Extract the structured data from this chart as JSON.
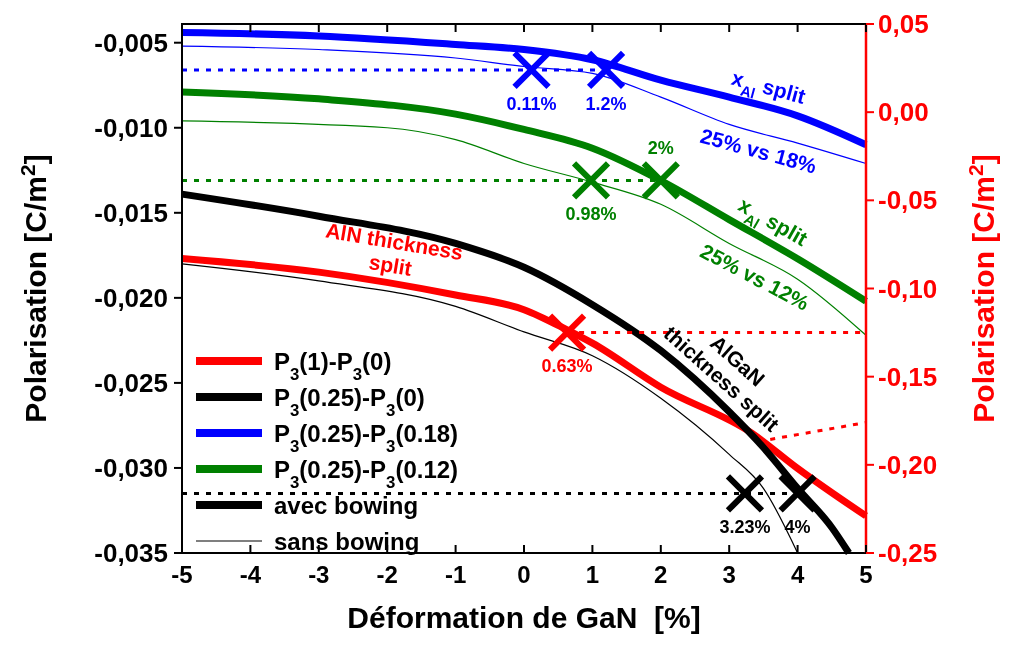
{
  "chart_data": {
    "type": "line",
    "xlabel": "Déformation de GaN  [%]",
    "ylabel": "Polarisation [C/m$^{2}$]",
    "y2label": "Polarisation [C/m$^{2}$]",
    "xlim": [
      -5,
      5
    ],
    "xticks": [
      -5,
      -4,
      -3,
      -2,
      -1,
      0,
      1,
      2,
      3,
      4,
      5
    ],
    "ylim": [
      -0.035,
      -0.0039
    ],
    "yticks": [
      {
        "value": -0.005,
        "label": "-0,005"
      },
      {
        "value": -0.01,
        "label": "-0,010"
      },
      {
        "value": -0.015,
        "label": "-0,015"
      },
      {
        "value": -0.02,
        "label": "-0,020"
      },
      {
        "value": -0.025,
        "label": "-0,025"
      },
      {
        "value": -0.03,
        "label": "-0,030"
      },
      {
        "value": -0.035,
        "label": "-0,035"
      }
    ],
    "y2lim": [
      -0.25,
      0.05
    ],
    "y2ticks": [
      {
        "value": 0.05,
        "label": "0,05"
      },
      {
        "value": 0,
        "label": "0,00"
      },
      {
        "value": -0.05,
        "label": "-0,05"
      },
      {
        "value": -0.1,
        "label": "-0,10"
      },
      {
        "value": -0.15,
        "label": "-0,15"
      },
      {
        "value": -0.2,
        "label": "-0,20"
      },
      {
        "value": -0.25,
        "label": "-0,25"
      }
    ],
    "legend": "bottom left",
    "grid": false,
    "series": [
      {
        "name": "P$_{3}$(1)-P$_{3}$(0)",
        "color": "#ff0000",
        "axis": "y2",
        "x": [
          -5,
          -3,
          -1,
          0,
          0.63,
          1,
          2,
          3.33,
          4,
          5
        ],
        "values": [
          -0.083,
          -0.0907,
          -0.1037,
          -0.112,
          -0.1235,
          -0.131,
          -0.156,
          -0.182,
          -0.202,
          -0.229
        ]
      },
      {
        "name": "P$_{3}$(0.25)-P$_{3}$(0)",
        "color": "#000000",
        "x": [
          -5,
          -3,
          -1,
          0,
          1,
          2,
          3,
          3.5,
          4,
          4.5,
          4.75
        ],
        "values": [
          -0.0139,
          -0.0152,
          -0.0168,
          -0.0182,
          -0.0204,
          -0.0231,
          -0.0267,
          -0.0288,
          -0.0312,
          -0.0335,
          -0.035
        ]
      },
      {
        "name": "P$_{3}$(0.25)-P$_{3}$(0.18)",
        "color": "#0000ff",
        "x": [
          -5,
          -3,
          -1,
          0,
          1,
          2,
          3,
          4,
          5
        ],
        "values": [
          -0.0044,
          -0.0046,
          -0.0051,
          -0.0054,
          -0.006,
          -0.0072,
          -0.0082,
          -0.0093,
          -0.011
        ]
      },
      {
        "name": "P$_{3}$(0.25)-P$_{3}$(0.12)",
        "color": "#008000",
        "x": [
          -5,
          -3,
          -1,
          0,
          1,
          2,
          3,
          4,
          5
        ],
        "values": [
          -0.0079,
          -0.0083,
          -0.0092,
          -0.0101,
          -0.0112,
          -0.0131,
          -0.0154,
          -0.0177,
          -0.0202
        ]
      },
      {
        "name": "sans bowing",
        "color": "#000000",
        "x": [
          -5,
          -3,
          -1,
          0,
          1,
          2,
          3,
          3.5,
          4
        ],
        "values": [
          -0.018,
          -0.019,
          -0.0205,
          -0.022,
          -0.0234,
          -0.0259,
          -0.0292,
          -0.0312,
          -0.035
        ]
      },
      {
        "color": "#0000ff",
        "x": [
          -5,
          -3,
          -1,
          0,
          1,
          2,
          3,
          4,
          5
        ],
        "values": [
          -0.0052,
          -0.0054,
          -0.0059,
          -0.0064,
          -0.0068,
          -0.0082,
          -0.0098,
          -0.0109,
          -0.0121
        ]
      },
      {
        "color": "#008000",
        "x": [
          -5,
          -2,
          -1,
          0,
          1,
          2,
          3,
          4,
          5
        ],
        "values": [
          -0.0096,
          -0.01,
          -0.0107,
          -0.0121,
          -0.0132,
          -0.0145,
          -0.0168,
          -0.0189,
          -0.0222
        ]
      },
      {
        "color": "#0000ff",
        "line_style": "dotted",
        "x": [
          -5,
          1.2
        ],
        "values": [
          -0.0066,
          -0.0066
        ]
      },
      {
        "color": "#008000",
        "line_style": "dotted",
        "x": [
          -5,
          2
        ],
        "values": [
          -0.0131,
          -0.0131
        ]
      },
      {
        "color": "#000000",
        "line_style": "dotted",
        "x": [
          -5,
          4
        ],
        "values": [
          -0.0315,
          -0.0315
        ]
      },
      {
        "color": "#ff0000",
        "line_style": "dotted",
        "axis": "y2",
        "x": [
          0.63,
          5
        ],
        "values": [
          -0.125,
          -0.125
        ]
      },
      {
        "color": "#ff0000",
        "line_style": "dotted",
        "axis": "y2",
        "x": [
          3.6,
          5
        ],
        "values": [
          -0.1856,
          -0.176
        ]
      },
      {
        "type": "scatter",
        "marker": "cross",
        "color": "#0000ff",
        "x": [
          0.11,
          1.2
        ],
        "values": [
          -0.0066,
          -0.0066
        ]
      },
      {
        "type": "scatter",
        "marker": "cross",
        "color": "#008000",
        "x": [
          0.98,
          2
        ],
        "values": [
          -0.0131,
          -0.0131
        ]
      },
      {
        "type": "scatter",
        "marker": "cross",
        "color": "#ff0000",
        "axis": "y2",
        "x": [
          0.63
        ],
        "values": [
          -0.125
        ]
      },
      {
        "type": "scatter",
        "marker": "cross",
        "color": "#000000",
        "x": [
          3.23,
          4
        ],
        "values": [
          -0.0315,
          -0.0315
        ]
      }
    ],
    "annotations": [
      "avec bowing",
      {
        "text": "x$_{Al}$ split",
        "x": 3.5,
        "y": -0.0087
      },
      {
        "text": "25% vs 18%",
        "x": 3.5,
        "y": -0.0103
      },
      {
        "text": "x$_{Al}$ split",
        "x": 3.5,
        "y": -0.0165
      },
      {
        "text": "25% vs 12%",
        "x": 3.5,
        "y": -0.0178
      },
      {
        "text": "AlN thickness\nsplit",
        "x": -2,
        "y": -0.0192
      },
      {
        "text": "AlGaN\nthickness split",
        "x": 2.7,
        "y": -0.0256
      },
      {
        "text": "0.11%",
        "x": 0.11,
        "y": -0.0066
      },
      {
        "text": "1.2%",
        "x": 1.2,
        "y": -0.0066
      },
      {
        "text": "0.98%",
        "x": 0.98,
        "y": -0.0131
      },
      {
        "text": "2%",
        "x": 2,
        "y": -0.0131
      },
      {
        "text": "0.63%",
        "x": 0.63,
        "y": -0.022
      },
      {
        "text": "3.23%",
        "x": 3.23,
        "y": -0.0315
      },
      {
        "text": "4%",
        "x": 4,
        "y": -0.0315
      }
    ]
  }
}
